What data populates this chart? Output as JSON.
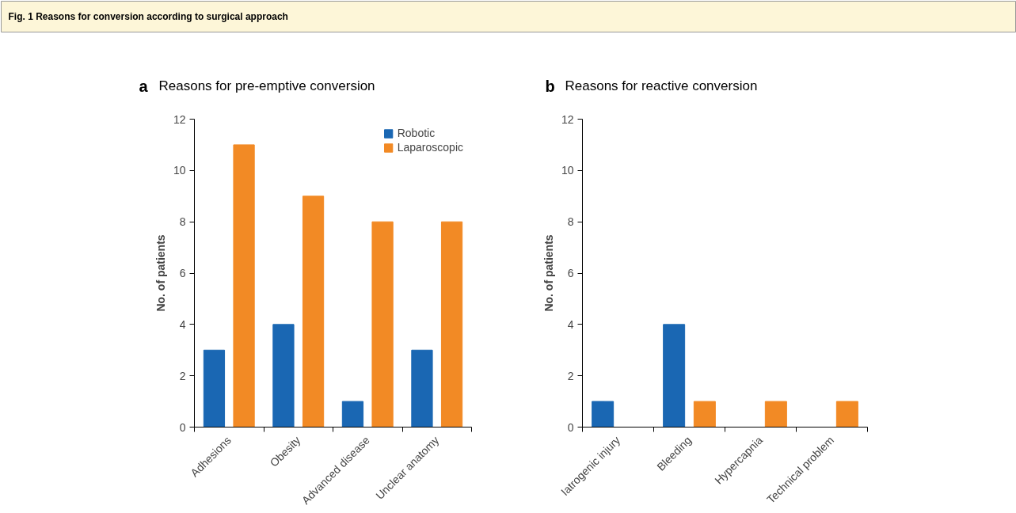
{
  "chart_data": [
    {
      "type": "bar",
      "title": "Reasons for pre-emptive conversion",
      "annotations": [
        "a",
        "Fig. 1 Reasons for conversion according to surgical approach"
      ],
      "ylabel": "No. of patients",
      "categories": [
        "Adhesions",
        "Obesity",
        "Advanced disease",
        "Unclear anatomy"
      ],
      "ylim": [
        0,
        12
      ],
      "yticks": [
        0,
        2,
        4,
        6,
        8,
        10,
        12
      ],
      "grid": false,
      "legend": "top right",
      "series": [
        {
          "name": "Robotic",
          "color": "#1a67b3",
          "values": [
            3,
            4,
            1,
            3
          ]
        },
        {
          "name": "Laparoscopic",
          "color": "#f28a25",
          "values": [
            11,
            9,
            8,
            8
          ]
        }
      ]
    },
    {
      "type": "bar",
      "title": "Reasons for reactive conversion",
      "annotations": [
        "b"
      ],
      "ylabel": "No. of patients",
      "categories": [
        "Iatrogenic injury",
        "Bleeding",
        "Hypercapnia",
        "Technical problem"
      ],
      "ylim": [
        0,
        12
      ],
      "yticks": [
        0,
        2,
        4,
        6,
        8,
        10,
        12
      ],
      "grid": false,
      "series": [
        {
          "color": "#1a67b3",
          "values": [
            1,
            4,
            0,
            0
          ]
        },
        {
          "color": "#f28a25",
          "values": [
            0,
            1,
            1,
            1
          ]
        }
      ]
    }
  ]
}
